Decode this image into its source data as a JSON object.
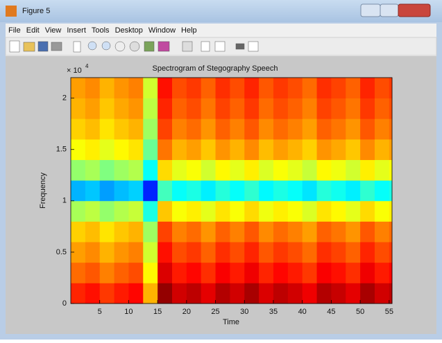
{
  "window": {
    "title": "Figure 5",
    "menu": [
      "File",
      "Edit",
      "View",
      "Insert",
      "Tools",
      "Desktop",
      "Window",
      "Help"
    ]
  },
  "chart_data": {
    "type": "spectrogram",
    "title": "Spectrogram of Stegography Speech",
    "x_label": "Time",
    "y_label": "Frequency",
    "y_multiplier": "× 10",
    "y_multiplier_exponent": "4",
    "colormap": "jet",
    "xlim": [
      0,
      55.5
    ],
    "ylim": [
      0,
      2.2
    ],
    "xticks": [
      5,
      10,
      15,
      20,
      25,
      30,
      35,
      40,
      45,
      50,
      55
    ],
    "yticks": [
      0,
      0.5,
      1,
      1.5,
      2
    ],
    "x_bins": [
      0,
      2.5,
      5,
      7.5,
      10,
      12.5,
      15,
      17.5,
      20,
      22.5,
      25,
      27.5,
      30,
      32.5,
      35,
      37.5,
      40,
      42.5,
      45,
      47.5,
      50,
      52.5,
      55,
      55.5
    ],
    "y_bins": [
      0,
      0.2,
      0.4,
      0.6,
      0.8,
      1,
      1.2,
      1.4,
      1.6,
      1.8,
      2,
      2.2
    ],
    "values": [
      [
        0.84,
        0.86,
        0.82,
        0.85,
        0.87,
        0.7,
        0.98,
        0.92,
        0.94,
        0.9,
        0.95,
        0.92,
        0.96,
        0.91,
        0.94,
        0.92,
        0.89,
        0.95,
        0.93,
        0.9,
        0.96,
        0.92,
        0.94
      ],
      [
        0.77,
        0.79,
        0.75,
        0.78,
        0.8,
        0.63,
        0.91,
        0.85,
        0.87,
        0.83,
        0.88,
        0.85,
        0.89,
        0.84,
        0.87,
        0.85,
        0.82,
        0.88,
        0.86,
        0.83,
        0.89,
        0.85,
        0.87
      ],
      [
        0.72,
        0.74,
        0.7,
        0.73,
        0.75,
        0.58,
        0.86,
        0.8,
        0.82,
        0.78,
        0.83,
        0.8,
        0.84,
        0.79,
        0.82,
        0.8,
        0.77,
        0.83,
        0.81,
        0.78,
        0.84,
        0.8,
        0.82
      ],
      [
        0.67,
        0.69,
        0.65,
        0.68,
        0.7,
        0.53,
        0.81,
        0.75,
        0.77,
        0.73,
        0.78,
        0.75,
        0.79,
        0.74,
        0.77,
        0.75,
        0.72,
        0.78,
        0.76,
        0.73,
        0.79,
        0.75,
        0.77
      ],
      [
        0.54,
        0.56,
        0.52,
        0.55,
        0.57,
        0.4,
        0.68,
        0.62,
        0.64,
        0.6,
        0.65,
        0.62,
        0.66,
        0.61,
        0.64,
        0.62,
        0.59,
        0.65,
        0.63,
        0.6,
        0.66,
        0.62,
        0.64
      ],
      [
        0.3,
        0.32,
        0.28,
        0.31,
        0.33,
        0.16,
        0.44,
        0.38,
        0.4,
        0.36,
        0.41,
        0.38,
        0.42,
        0.37,
        0.4,
        0.38,
        0.35,
        0.41,
        0.39,
        0.36,
        0.42,
        0.38,
        0.4
      ],
      [
        0.52,
        0.54,
        0.5,
        0.53,
        0.55,
        0.38,
        0.66,
        0.6,
        0.62,
        0.58,
        0.63,
        0.6,
        0.64,
        0.59,
        0.62,
        0.6,
        0.57,
        0.63,
        0.61,
        0.58,
        0.64,
        0.6,
        0.62
      ],
      [
        0.62,
        0.64,
        0.6,
        0.63,
        0.65,
        0.48,
        0.76,
        0.7,
        0.72,
        0.68,
        0.73,
        0.7,
        0.74,
        0.69,
        0.72,
        0.7,
        0.67,
        0.73,
        0.71,
        0.68,
        0.74,
        0.7,
        0.72
      ],
      [
        0.67,
        0.69,
        0.65,
        0.68,
        0.7,
        0.53,
        0.81,
        0.75,
        0.77,
        0.73,
        0.78,
        0.75,
        0.79,
        0.74,
        0.77,
        0.75,
        0.72,
        0.78,
        0.76,
        0.73,
        0.79,
        0.75,
        0.77
      ],
      [
        0.7,
        0.72,
        0.68,
        0.71,
        0.73,
        0.56,
        0.84,
        0.78,
        0.8,
        0.76,
        0.81,
        0.78,
        0.82,
        0.77,
        0.8,
        0.78,
        0.75,
        0.81,
        0.79,
        0.76,
        0.82,
        0.78,
        0.8
      ],
      [
        0.72,
        0.74,
        0.7,
        0.73,
        0.75,
        0.58,
        0.86,
        0.8,
        0.82,
        0.78,
        0.83,
        0.8,
        0.84,
        0.79,
        0.82,
        0.8,
        0.77,
        0.83,
        0.81,
        0.78,
        0.84,
        0.8,
        0.82
      ]
    ]
  }
}
